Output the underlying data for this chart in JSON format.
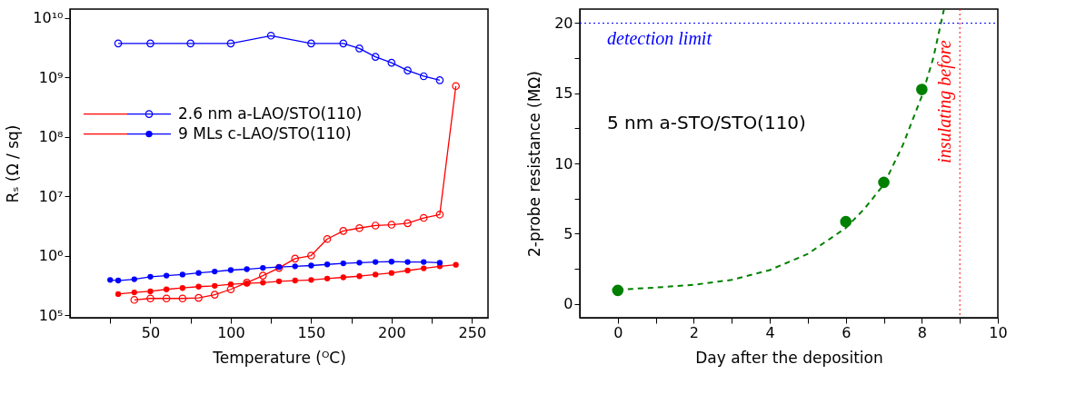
{
  "chart_data": [
    {
      "type": "line",
      "xlabel": "Temperature (ᴼC)",
      "ylabel": "Rₛ (Ω / sq)",
      "log": "y",
      "legend": "left",
      "marker": "circle",
      "line_style": "solid",
      "xlim": [
        0,
        260
      ],
      "xticks": [
        {
          "value": 25,
          "label": null
        },
        50,
        {
          "value": 75,
          "label": null
        },
        100,
        {
          "value": 125,
          "label": null
        },
        150,
        {
          "value": 175,
          "label": null
        },
        200,
        {
          "value": 225,
          "label": null
        },
        250
      ],
      "ylim": [
        90000,
        14000000000
      ],
      "yticks": [
        {
          "value": 100000,
          "label": "10⁵"
        },
        {
          "value": 1000000,
          "label": "10⁶"
        },
        {
          "value": 10000000,
          "label": "10⁷"
        },
        {
          "value": 100000000,
          "label": "10⁸"
        },
        {
          "value": 1000000000,
          "label": "10⁹"
        },
        {
          "value": 10000000000,
          "label": "10¹⁰"
        }
      ],
      "series": [
        {
          "color": "#ff0000",
          "marker": "open circle",
          "x": [
            40,
            50,
            60,
            70,
            80,
            90,
            100,
            110,
            120,
            130,
            140,
            150,
            160,
            170,
            180,
            190,
            200,
            210,
            220,
            230,
            240
          ],
          "values": [
            180000,
            190000,
            190000,
            190000,
            194000,
            220000,
            270000,
            350000,
            460000,
            620000,
            890000,
            1000000,
            1900000,
            2600000,
            2900000,
            3200000,
            3300000,
            3500000,
            4300000,
            4900000,
            710000000
          ]
        },
        {
          "name": "2.6 nm a-LAO/STO(110)",
          "color": "#0000ff",
          "marker": "open circle",
          "x": [
            30,
            50,
            75,
            100,
            125,
            150,
            170,
            180,
            190,
            200,
            210,
            220,
            230
          ],
          "values": [
            3700000000,
            3700000000,
            3700000000,
            3700000000,
            5000000000,
            3700000000,
            3700000000,
            3050000000,
            2200000000,
            1750000000,
            1300000000,
            1040000000,
            890000000
          ]
        },
        {
          "color": "#ff0000",
          "x": [
            30,
            40,
            50,
            60,
            70,
            80,
            90,
            100,
            110,
            120,
            130,
            140,
            150,
            160,
            170,
            180,
            190,
            200,
            210,
            220,
            230,
            240
          ],
          "values": [
            225000,
            240000,
            250000,
            270000,
            285000,
            300000,
            310000,
            330000,
            340000,
            350000,
            370000,
            380000,
            390000,
            410000,
            430000,
            450000,
            480000,
            510000,
            560000,
            610000,
            660000,
            700000
          ]
        },
        {
          "name": "9 MLs c-LAO/STO(110)",
          "color": "#0000ff",
          "x": [
            25,
            30,
            40,
            50,
            60,
            70,
            80,
            90,
            100,
            110,
            120,
            130,
            140,
            150,
            160,
            170,
            180,
            190,
            200,
            210,
            220,
            230
          ],
          "values": [
            390000,
            380000,
            400000,
            440000,
            460000,
            480000,
            510000,
            540000,
            570000,
            590000,
            620000,
            640000,
            660000,
            680000,
            710000,
            740000,
            760000,
            780000,
            790000,
            780000,
            780000,
            760000
          ]
        }
      ]
    },
    {
      "type": "scatter",
      "xlabel": "Day after the deposition",
      "ylabel": "2-probe resistance (MΩ)",
      "marker": "circle",
      "xlim": [
        -1,
        10
      ],
      "xticks": [
        0,
        {
          "value": 1,
          "label": null
        },
        2,
        {
          "value": 3,
          "label": null
        },
        4,
        {
          "value": 5,
          "label": null
        },
        6,
        {
          "value": 7,
          "label": null
        },
        8,
        {
          "value": 9,
          "label": null
        },
        10
      ],
      "ylim": [
        -1,
        21
      ],
      "yticks": [
        0,
        {
          "value": 2.5,
          "label": null
        },
        5,
        {
          "value": 7.5,
          "label": null
        },
        10,
        {
          "value": 12.5,
          "label": null
        },
        15,
        {
          "value": 17.5,
          "label": null
        },
        20
      ],
      "annotations": [
        "5 nm a-STO/STO(110)"
      ],
      "ref_lines": [
        {
          "axis": "y",
          "value": 20,
          "label": "detection limit",
          "color": "#0000ff",
          "line_style": "dotted"
        },
        {
          "axis": "x",
          "value": 9,
          "label": "insulating before",
          "color": "#ff0000",
          "line_style": "dotted"
        }
      ],
      "series": [
        {
          "type": "line",
          "color": "#008000",
          "line_style": "dashed",
          "marker": "none",
          "x": [
            0,
            1,
            2,
            3,
            4,
            5,
            6,
            6.5,
            7,
            7.5,
            8,
            8.3,
            8.58
          ],
          "values": [
            1.0,
            1.15,
            1.35,
            1.7,
            2.4,
            3.55,
            5.4,
            6.8,
            8.5,
            11.3,
            14.8,
            17.5,
            20.95
          ]
        },
        {
          "type": "scatter",
          "color": "#008000",
          "x": [
            0,
            6,
            7,
            8
          ],
          "values": [
            0.95,
            5.85,
            8.65,
            15.27
          ]
        }
      ]
    }
  ]
}
